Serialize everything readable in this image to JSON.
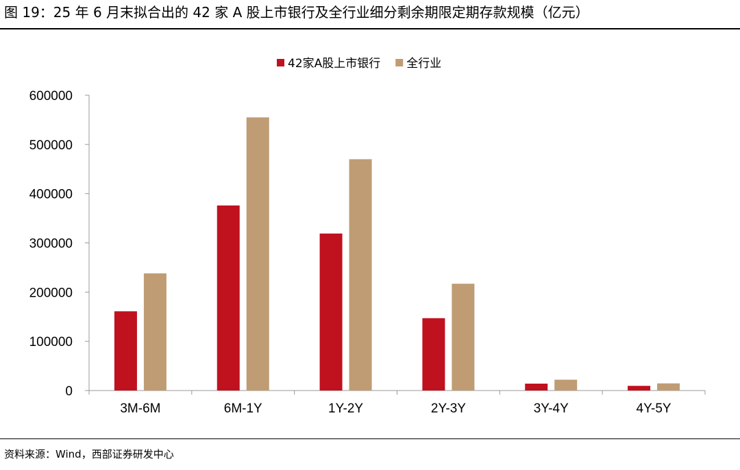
{
  "figure": {
    "title": "图 19：25 年 6 月末拟合出的 42 家 A 股上市银行及全行业细分剩余期限定期存款规模（亿元）",
    "source": "资料来源：Wind，西部证券研发中心"
  },
  "chart_data": {
    "type": "bar",
    "title": "",
    "xlabel": "",
    "ylabel": "",
    "categories": [
      "3M-6M",
      "6M-1Y",
      "1Y-2Y",
      "2Y-3Y",
      "3Y-4Y",
      "4Y-5Y"
    ],
    "series": [
      {
        "name": "42家A股上市银行",
        "color": "#c0111f",
        "values": [
          161000,
          376000,
          319000,
          147000,
          14000,
          9500
        ]
      },
      {
        "name": "全行业",
        "color": "#bf9c73",
        "values": [
          238000,
          555000,
          470000,
          217000,
          22000,
          14500
        ]
      }
    ],
    "ylim": [
      0,
      600000
    ],
    "yticks": [
      "0",
      "100000",
      "200000",
      "300000",
      "400000",
      "500000",
      "600000"
    ],
    "grid": false,
    "legend_position": "top-center"
  }
}
